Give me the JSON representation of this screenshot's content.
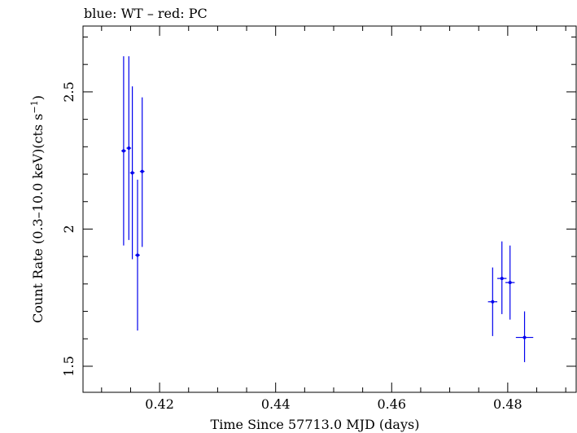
{
  "chart_data": {
    "type": "scatter",
    "title": "blue: WT – red: PC",
    "xlabel": "Time Since 57713.0 MJD (days)",
    "ylabel": "Count Rate (0.3–10.0 keV)(cts s",
    "ylabel_sup": "−1",
    "ylabel_end": ")",
    "xlim": [
      0.4068,
      0.4918
    ],
    "ylim": [
      1.405,
      2.74
    ],
    "xticks": [
      0.42,
      0.44,
      0.46,
      0.48
    ],
    "xtick_labels": [
      "0.42",
      "0.44",
      "0.46",
      "0.48"
    ],
    "yticks": [
      1.5,
      2,
      2.5
    ],
    "ytick_labels": [
      "1.5",
      "2",
      "2.5"
    ],
    "grid": false,
    "series": [
      {
        "color": "#0000ee",
        "points": [
          {
            "x": 0.4138,
            "y": 2.285,
            "xerr": 0.0004,
            "ylo": 1.94,
            "yhi": 2.63
          },
          {
            "x": 0.4147,
            "y": 2.295,
            "xerr": 0.0004,
            "ylo": 1.96,
            "yhi": 2.63
          },
          {
            "x": 0.4153,
            "y": 2.205,
            "xerr": 0.0004,
            "ylo": 1.89,
            "yhi": 2.52
          },
          {
            "x": 0.4162,
            "y": 1.905,
            "xerr": 0.0004,
            "ylo": 1.63,
            "yhi": 2.18
          },
          {
            "x": 0.417,
            "y": 2.21,
            "xerr": 0.0004,
            "ylo": 1.935,
            "yhi": 2.48
          },
          {
            "x": 0.4774,
            "y": 1.735,
            "xerr": 0.0008,
            "ylo": 1.61,
            "yhi": 1.86
          },
          {
            "x": 0.479,
            "y": 1.82,
            "xerr": 0.0008,
            "ylo": 1.69,
            "yhi": 1.955
          },
          {
            "x": 0.4804,
            "y": 1.805,
            "xerr": 0.0008,
            "ylo": 1.67,
            "yhi": 1.94
          },
          {
            "x": 0.4829,
            "y": 1.605,
            "xerr": 0.0015,
            "ylo": 1.515,
            "yhi": 1.7
          }
        ]
      }
    ]
  }
}
